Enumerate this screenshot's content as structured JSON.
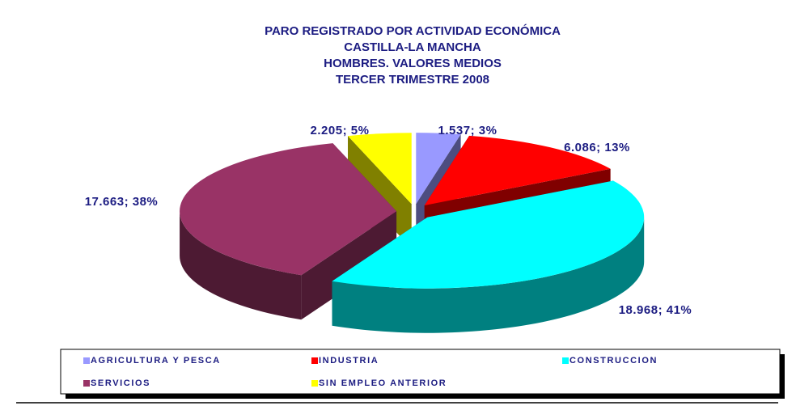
{
  "chart_data": {
    "type": "pie3d",
    "title": [
      "PARO REGISTRADO POR ACTIVIDAD ECONÓMICA",
      "CASTILLA-LA MANCHA",
      "HOMBRES.  VALORES MEDIOS",
      "TERCER TRIMESTRE 2008"
    ],
    "categories": [
      "AGRICULTURA Y PESCA",
      "INDUSTRIA",
      "CONSTRUCCION",
      "SERVICIOS",
      "SIN EMPLEO ANTERIOR"
    ],
    "values": [
      1537,
      6086,
      18968,
      17663,
      2205
    ],
    "value_labels": [
      "1.537; 3%",
      "6.086; 13%",
      "18.968; 41%",
      "17.663; 38%",
      "2.205; 5%"
    ],
    "colors": [
      "#9999ff",
      "#ff0000",
      "#00ffff",
      "#993366",
      "#ffff00"
    ],
    "legend": "bottom"
  }
}
